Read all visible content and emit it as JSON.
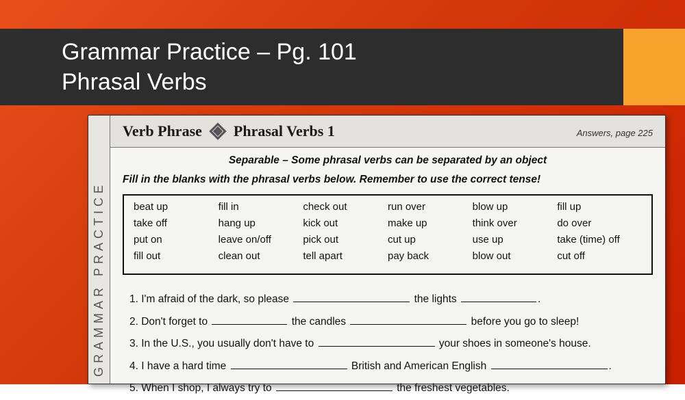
{
  "colors": {
    "bg_grad_start": "#e94e1b",
    "bg_grad_end": "#c91f00",
    "title_bar_bg": "#2d2d2d",
    "title_text": "#ffffff",
    "accent_block": "#f7a32b",
    "worksheet_bg": "#f5f5f3",
    "worksheet_header_bg": "#e4e2de",
    "text": "#111111",
    "side_label": "#555555"
  },
  "slide": {
    "title": "Grammar Practice – Pg. 101\nPhrasal Verbs"
  },
  "worksheet": {
    "side_label": "GRAMMAR PRACTICE",
    "header": {
      "phrase": "Verb Phrase",
      "subtitle": "Phrasal Verbs 1",
      "answers_ref": "Answers, page 225"
    },
    "separable_note": "Separable – Some phrasal verbs can be separated by an object",
    "instruction": "Fill in the blanks with the phrasal verbs below.  Remember to use the correct tense!",
    "verb_box": {
      "columns": 6,
      "verbs": [
        "beat up",
        "fill in",
        "check out",
        "run over",
        "blow up",
        "fill up",
        "take off",
        "hang up",
        "kick out",
        "make up",
        "think over",
        "do over",
        "put on",
        "leave on/off",
        "pick out",
        "cut up",
        "use up",
        "take (time) off",
        "fill out",
        "clean out",
        "tell apart",
        "pay back",
        "blow out",
        "cut off"
      ]
    },
    "questions": [
      {
        "n": "1.",
        "parts": [
          "I'm afraid of the dark, so please ",
          {
            "blank": "long"
          },
          " the lights ",
          {
            "blank": "short"
          },
          "."
        ]
      },
      {
        "n": "2.",
        "parts": [
          "Don't forget to ",
          {
            "blank": "short"
          },
          " the candles ",
          {
            "blank": "long"
          },
          " before you go to sleep!"
        ]
      },
      {
        "n": "3.",
        "parts": [
          "In the U.S., you usually don't have to ",
          {
            "blank": "long"
          },
          " your shoes in someone's house."
        ]
      },
      {
        "n": "4.",
        "parts": [
          "I have a hard time ",
          {
            "blank": "long"
          },
          " British and American English ",
          {
            "blank": "long"
          },
          "."
        ]
      },
      {
        "n": "5.",
        "parts": [
          "When I shop, I always try to ",
          {
            "blank": "long"
          },
          " the freshest vegetables."
        ]
      }
    ]
  }
}
